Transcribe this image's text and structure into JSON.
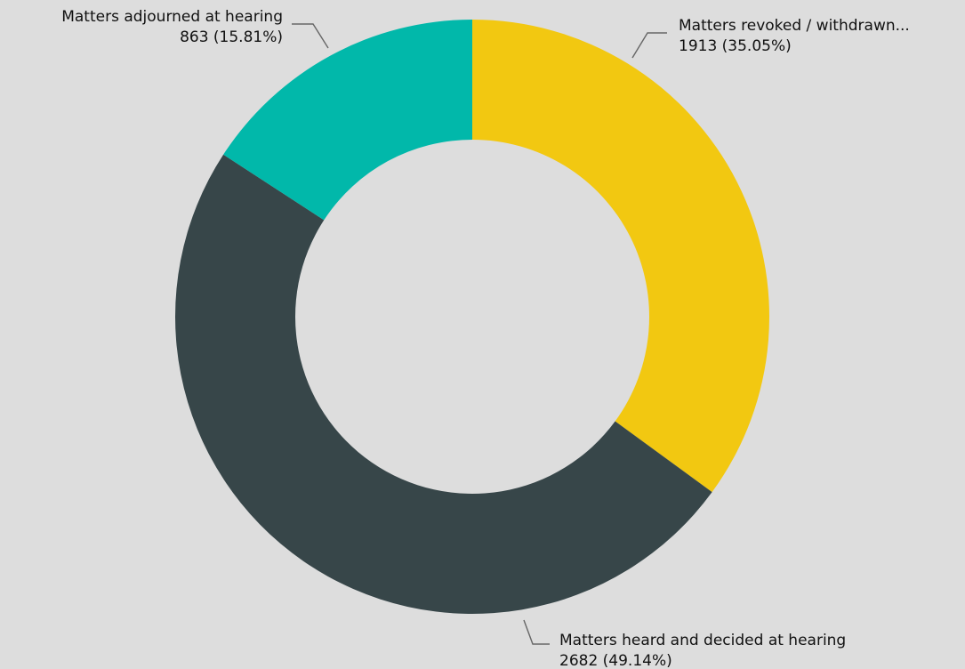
{
  "chart_data": {
    "type": "pie",
    "variant": "donut",
    "slices": [
      {
        "label": "Matters revoked / withdrawn...",
        "value": 1913,
        "value_text": "1913 (35.05%)",
        "color": "#f2c811"
      },
      {
        "label": "Matters heard and decided at hearing",
        "value": 2682,
        "value_text": "2682 (49.14%)",
        "color": "#374649"
      },
      {
        "label": "Matters adjourned at hearing",
        "value": 863,
        "value_text": "863 (15.81%)",
        "color": "#01b8aa"
      }
    ],
    "background": "#dddddd",
    "legend": "none"
  }
}
